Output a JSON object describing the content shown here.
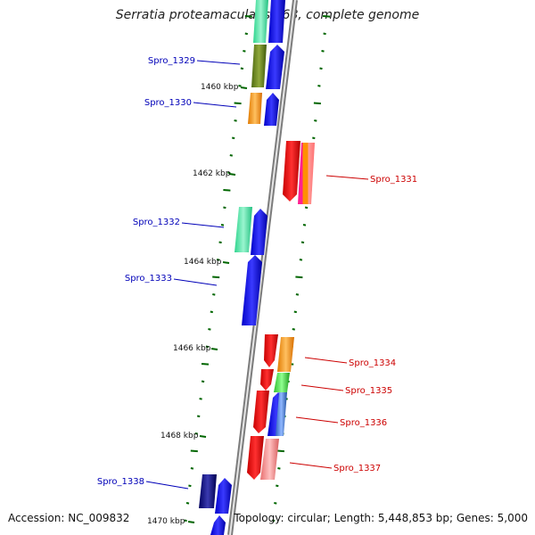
{
  "title": "Serratia proteamaculans 568, complete genome",
  "accession": "Accession: NC_009832",
  "topology": "Topology: circular; Length: 5,448,853 bp; Genes: 5,000",
  "colors": {
    "left_label": "#0000b8",
    "right_label": "#cc0000",
    "tick": "#006600",
    "backbone": "#888888"
  },
  "kbp_ticks": [
    "1460 kbp",
    "1462 kbp",
    "1464 kbp",
    "1466 kbp",
    "1468 kbp",
    "1470 kbp"
  ],
  "gene_labels": [
    {
      "name": "Spro_1329",
      "side": "left"
    },
    {
      "name": "Spro_1330",
      "side": "left"
    },
    {
      "name": "Spro_1331",
      "side": "right"
    },
    {
      "name": "Spro_1332",
      "side": "left"
    },
    {
      "name": "Spro_1333",
      "side": "left"
    },
    {
      "name": "Spro_1334",
      "side": "right"
    },
    {
      "name": "Spro_1335",
      "side": "right"
    },
    {
      "name": "Spro_1336",
      "side": "right"
    },
    {
      "name": "Spro_1337",
      "side": "right"
    },
    {
      "name": "Spro_1338",
      "side": "left"
    }
  ]
}
